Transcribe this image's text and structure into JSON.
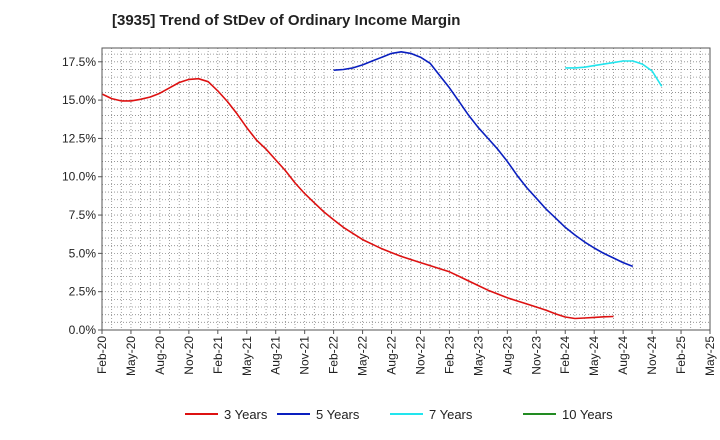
{
  "chart_data": {
    "type": "line",
    "title": "[3935]  Trend of StDev of Ordinary Income Margin",
    "xlabel": "",
    "ylabel": "",
    "x_tick_labels": [
      "Feb-20",
      "May-20",
      "Aug-20",
      "Nov-20",
      "Feb-21",
      "May-21",
      "Aug-21",
      "Nov-21",
      "Feb-22",
      "May-22",
      "Aug-22",
      "Nov-22",
      "Feb-23",
      "May-23",
      "Aug-23",
      "Nov-23",
      "Feb-24",
      "May-24",
      "Aug-24",
      "Nov-24",
      "Feb-25",
      "May-25"
    ],
    "y_tick_labels": [
      "0.0%",
      "2.5%",
      "5.0%",
      "7.5%",
      "10.0%",
      "12.5%",
      "15.0%",
      "17.5%"
    ],
    "y_ticks": [
      0,
      2.5,
      5,
      7.5,
      10,
      12.5,
      15,
      17.5
    ],
    "ylim": [
      0,
      18.4
    ],
    "x_range_months": [
      0,
      63
    ],
    "grid": true,
    "legend_position": "bottom",
    "series": [
      {
        "name": "3 Years",
        "color": "#dd1111",
        "points": [
          [
            "Feb-20",
            15.4
          ],
          [
            "Mar-20",
            15.1
          ],
          [
            "Apr-20",
            14.95
          ],
          [
            "May-20",
            14.95
          ],
          [
            "Jun-20",
            15.05
          ],
          [
            "Jul-20",
            15.2
          ],
          [
            "Aug-20",
            15.45
          ],
          [
            "Sep-20",
            15.8
          ],
          [
            "Oct-20",
            16.15
          ],
          [
            "Nov-20",
            16.35
          ],
          [
            "Dec-20",
            16.4
          ],
          [
            "Jan-21",
            16.2
          ],
          [
            "Feb-21",
            15.6
          ],
          [
            "Mar-21",
            14.9
          ],
          [
            "Apr-21",
            14.1
          ],
          [
            "May-21",
            13.2
          ],
          [
            "Jun-21",
            12.4
          ],
          [
            "Jul-21",
            11.8
          ],
          [
            "Aug-21",
            11.1
          ],
          [
            "Sep-21",
            10.4
          ],
          [
            "Oct-21",
            9.6
          ],
          [
            "Nov-21",
            8.9
          ],
          [
            "Dec-21",
            8.3
          ],
          [
            "Jan-22",
            7.7
          ],
          [
            "Feb-22",
            7.2
          ],
          [
            "Mar-22",
            6.7
          ],
          [
            "Apr-22",
            6.3
          ],
          [
            "May-22",
            5.9
          ],
          [
            "Jun-22",
            5.6
          ],
          [
            "Jul-22",
            5.3
          ],
          [
            "Aug-22",
            5.05
          ],
          [
            "Sep-22",
            4.8
          ],
          [
            "Oct-22",
            4.6
          ],
          [
            "Nov-22",
            4.4
          ],
          [
            "Dec-22",
            4.2
          ],
          [
            "Jan-23",
            4.0
          ],
          [
            "Feb-23",
            3.8
          ],
          [
            "Mar-23",
            3.5
          ],
          [
            "Apr-23",
            3.2
          ],
          [
            "May-23",
            2.9
          ],
          [
            "Jun-23",
            2.6
          ],
          [
            "Jul-23",
            2.35
          ],
          [
            "Aug-23",
            2.1
          ],
          [
            "Sep-23",
            1.9
          ],
          [
            "Oct-23",
            1.7
          ],
          [
            "Nov-23",
            1.5
          ],
          [
            "Dec-23",
            1.3
          ],
          [
            "Jan-24",
            1.05
          ],
          [
            "Feb-24",
            0.85
          ],
          [
            "Mar-24",
            0.75
          ],
          [
            "Apr-24",
            0.78
          ],
          [
            "May-24",
            0.82
          ],
          [
            "Jun-24",
            0.86
          ],
          [
            "Jul-24",
            0.88
          ]
        ]
      },
      {
        "name": "5 Years",
        "color": "#0a1fbf",
        "points": [
          [
            "Feb-22",
            16.95
          ],
          [
            "Mar-22",
            17.0
          ],
          [
            "Apr-22",
            17.1
          ],
          [
            "May-22",
            17.3
          ],
          [
            "Jun-22",
            17.55
          ],
          [
            "Jul-22",
            17.8
          ],
          [
            "Aug-22",
            18.05
          ],
          [
            "Sep-22",
            18.15
          ],
          [
            "Oct-22",
            18.05
          ],
          [
            "Nov-22",
            17.8
          ],
          [
            "Dec-22",
            17.4
          ],
          [
            "Jan-23",
            16.6
          ],
          [
            "Feb-23",
            15.8
          ],
          [
            "Mar-23",
            14.9
          ],
          [
            "Apr-23",
            14.0
          ],
          [
            "May-23",
            13.2
          ],
          [
            "Jun-23",
            12.5
          ],
          [
            "Jul-23",
            11.8
          ],
          [
            "Aug-23",
            11.0
          ],
          [
            "Sep-23",
            10.1
          ],
          [
            "Oct-23",
            9.3
          ],
          [
            "Nov-23",
            8.6
          ],
          [
            "Dec-23",
            7.9
          ],
          [
            "Jan-24",
            7.3
          ],
          [
            "Feb-24",
            6.7
          ],
          [
            "Mar-24",
            6.2
          ],
          [
            "Apr-24",
            5.75
          ],
          [
            "May-24",
            5.35
          ],
          [
            "Jun-24",
            5.0
          ],
          [
            "Jul-24",
            4.7
          ],
          [
            "Aug-24",
            4.4
          ],
          [
            "Sep-24",
            4.15
          ]
        ]
      },
      {
        "name": "7 Years",
        "color": "#22e5ee",
        "points": [
          [
            "Feb-24",
            17.1
          ],
          [
            "Mar-24",
            17.1
          ],
          [
            "Apr-24",
            17.15
          ],
          [
            "May-24",
            17.25
          ],
          [
            "Jun-24",
            17.35
          ],
          [
            "Jul-24",
            17.45
          ],
          [
            "Aug-24",
            17.55
          ],
          [
            "Sep-24",
            17.55
          ],
          [
            "Oct-24",
            17.35
          ],
          [
            "Nov-24",
            16.9
          ],
          [
            "Dec-24",
            15.9
          ]
        ]
      },
      {
        "name": "10 Years",
        "color": "#228b22",
        "points": []
      }
    ]
  }
}
